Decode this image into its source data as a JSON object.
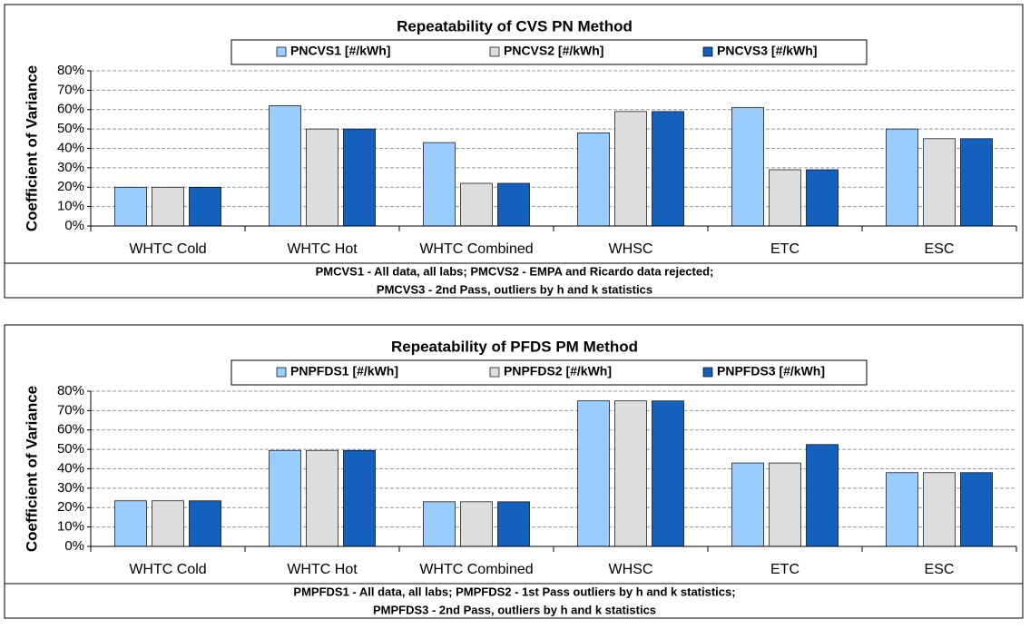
{
  "chart_data": [
    {
      "type": "bar",
      "title": "Repeatability of CVS PN Method",
      "y_label": "Coefficient of Variance",
      "categories": [
        "WHTC Cold",
        "WHTC Hot",
        "WHTC Combined",
        "WHSC",
        "ETC",
        "ESC"
      ],
      "series": [
        {
          "name": "PNCVS1 [#/kWh]",
          "color": "#99ccff",
          "values": [
            20,
            62,
            43,
            48,
            61,
            50
          ]
        },
        {
          "name": "PNCVS2 [#/kWh]",
          "color": "#dddddd",
          "values": [
            20,
            50,
            22,
            59,
            29,
            45
          ]
        },
        {
          "name": "PNCVS3 [#/kWh]",
          "color": "#1461bd",
          "values": [
            20,
            50,
            22,
            59,
            29,
            45
          ]
        }
      ],
      "ylim": [
        0,
        80
      ],
      "yticks": [
        {
          "value": 0,
          "label": "0%"
        },
        {
          "value": 10,
          "label": "10%"
        },
        {
          "value": 20,
          "label": "20%"
        },
        {
          "value": 30,
          "label": "30%"
        },
        {
          "value": 40,
          "label": "40%"
        },
        {
          "value": 50,
          "label": "50%"
        },
        {
          "value": 60,
          "label": "60%"
        },
        {
          "value": 70,
          "label": "70%"
        },
        {
          "value": 80,
          "label": "80%"
        }
      ],
      "grid": true,
      "notes": [
        "PMCVS1 - All data, all labs;  PMCVS2 - EMPA and Ricardo data rejected;",
        "PMCVS3 - 2nd Pass, outliers by h and k statistics"
      ]
    },
    {
      "type": "bar",
      "title": "Repeatability of PFDS PM Method",
      "y_label": "Coefficient of Variance",
      "categories": [
        "WHTC Cold",
        "WHTC Hot",
        "WHTC Combined",
        "WHSC",
        "ETC",
        "ESC"
      ],
      "series": [
        {
          "name": "PNPFDS1 [#/kWh]",
          "color": "#99ccff",
          "values": [
            23.5,
            49.5,
            23,
            75,
            43,
            38
          ]
        },
        {
          "name": "PNPFDS2 [#/kWh]",
          "color": "#dddddd",
          "values": [
            23.5,
            49.5,
            23,
            75,
            43,
            38
          ]
        },
        {
          "name": "PNPFDS3 [#/kWh]",
          "color": "#1461bd",
          "values": [
            23.5,
            49.5,
            23,
            75,
            52.5,
            38
          ]
        }
      ],
      "ylim": [
        0,
        80
      ],
      "yticks": [
        {
          "value": 0,
          "label": "0%"
        },
        {
          "value": 10,
          "label": "10%"
        },
        {
          "value": 20,
          "label": "20%"
        },
        {
          "value": 30,
          "label": "30%"
        },
        {
          "value": 40,
          "label": "40%"
        },
        {
          "value": 50,
          "label": "50%"
        },
        {
          "value": 60,
          "label": "60%"
        },
        {
          "value": 70,
          "label": "70%"
        },
        {
          "value": 80,
          "label": "80%"
        }
      ],
      "grid": true,
      "notes": [
        "PMPFDS1 - All data, all labs;  PMPFDS2 - 1st Pass outliers by h and k statistics;",
        "PMPFDS3 - 2nd Pass, outliers by h and k statistics"
      ]
    }
  ]
}
